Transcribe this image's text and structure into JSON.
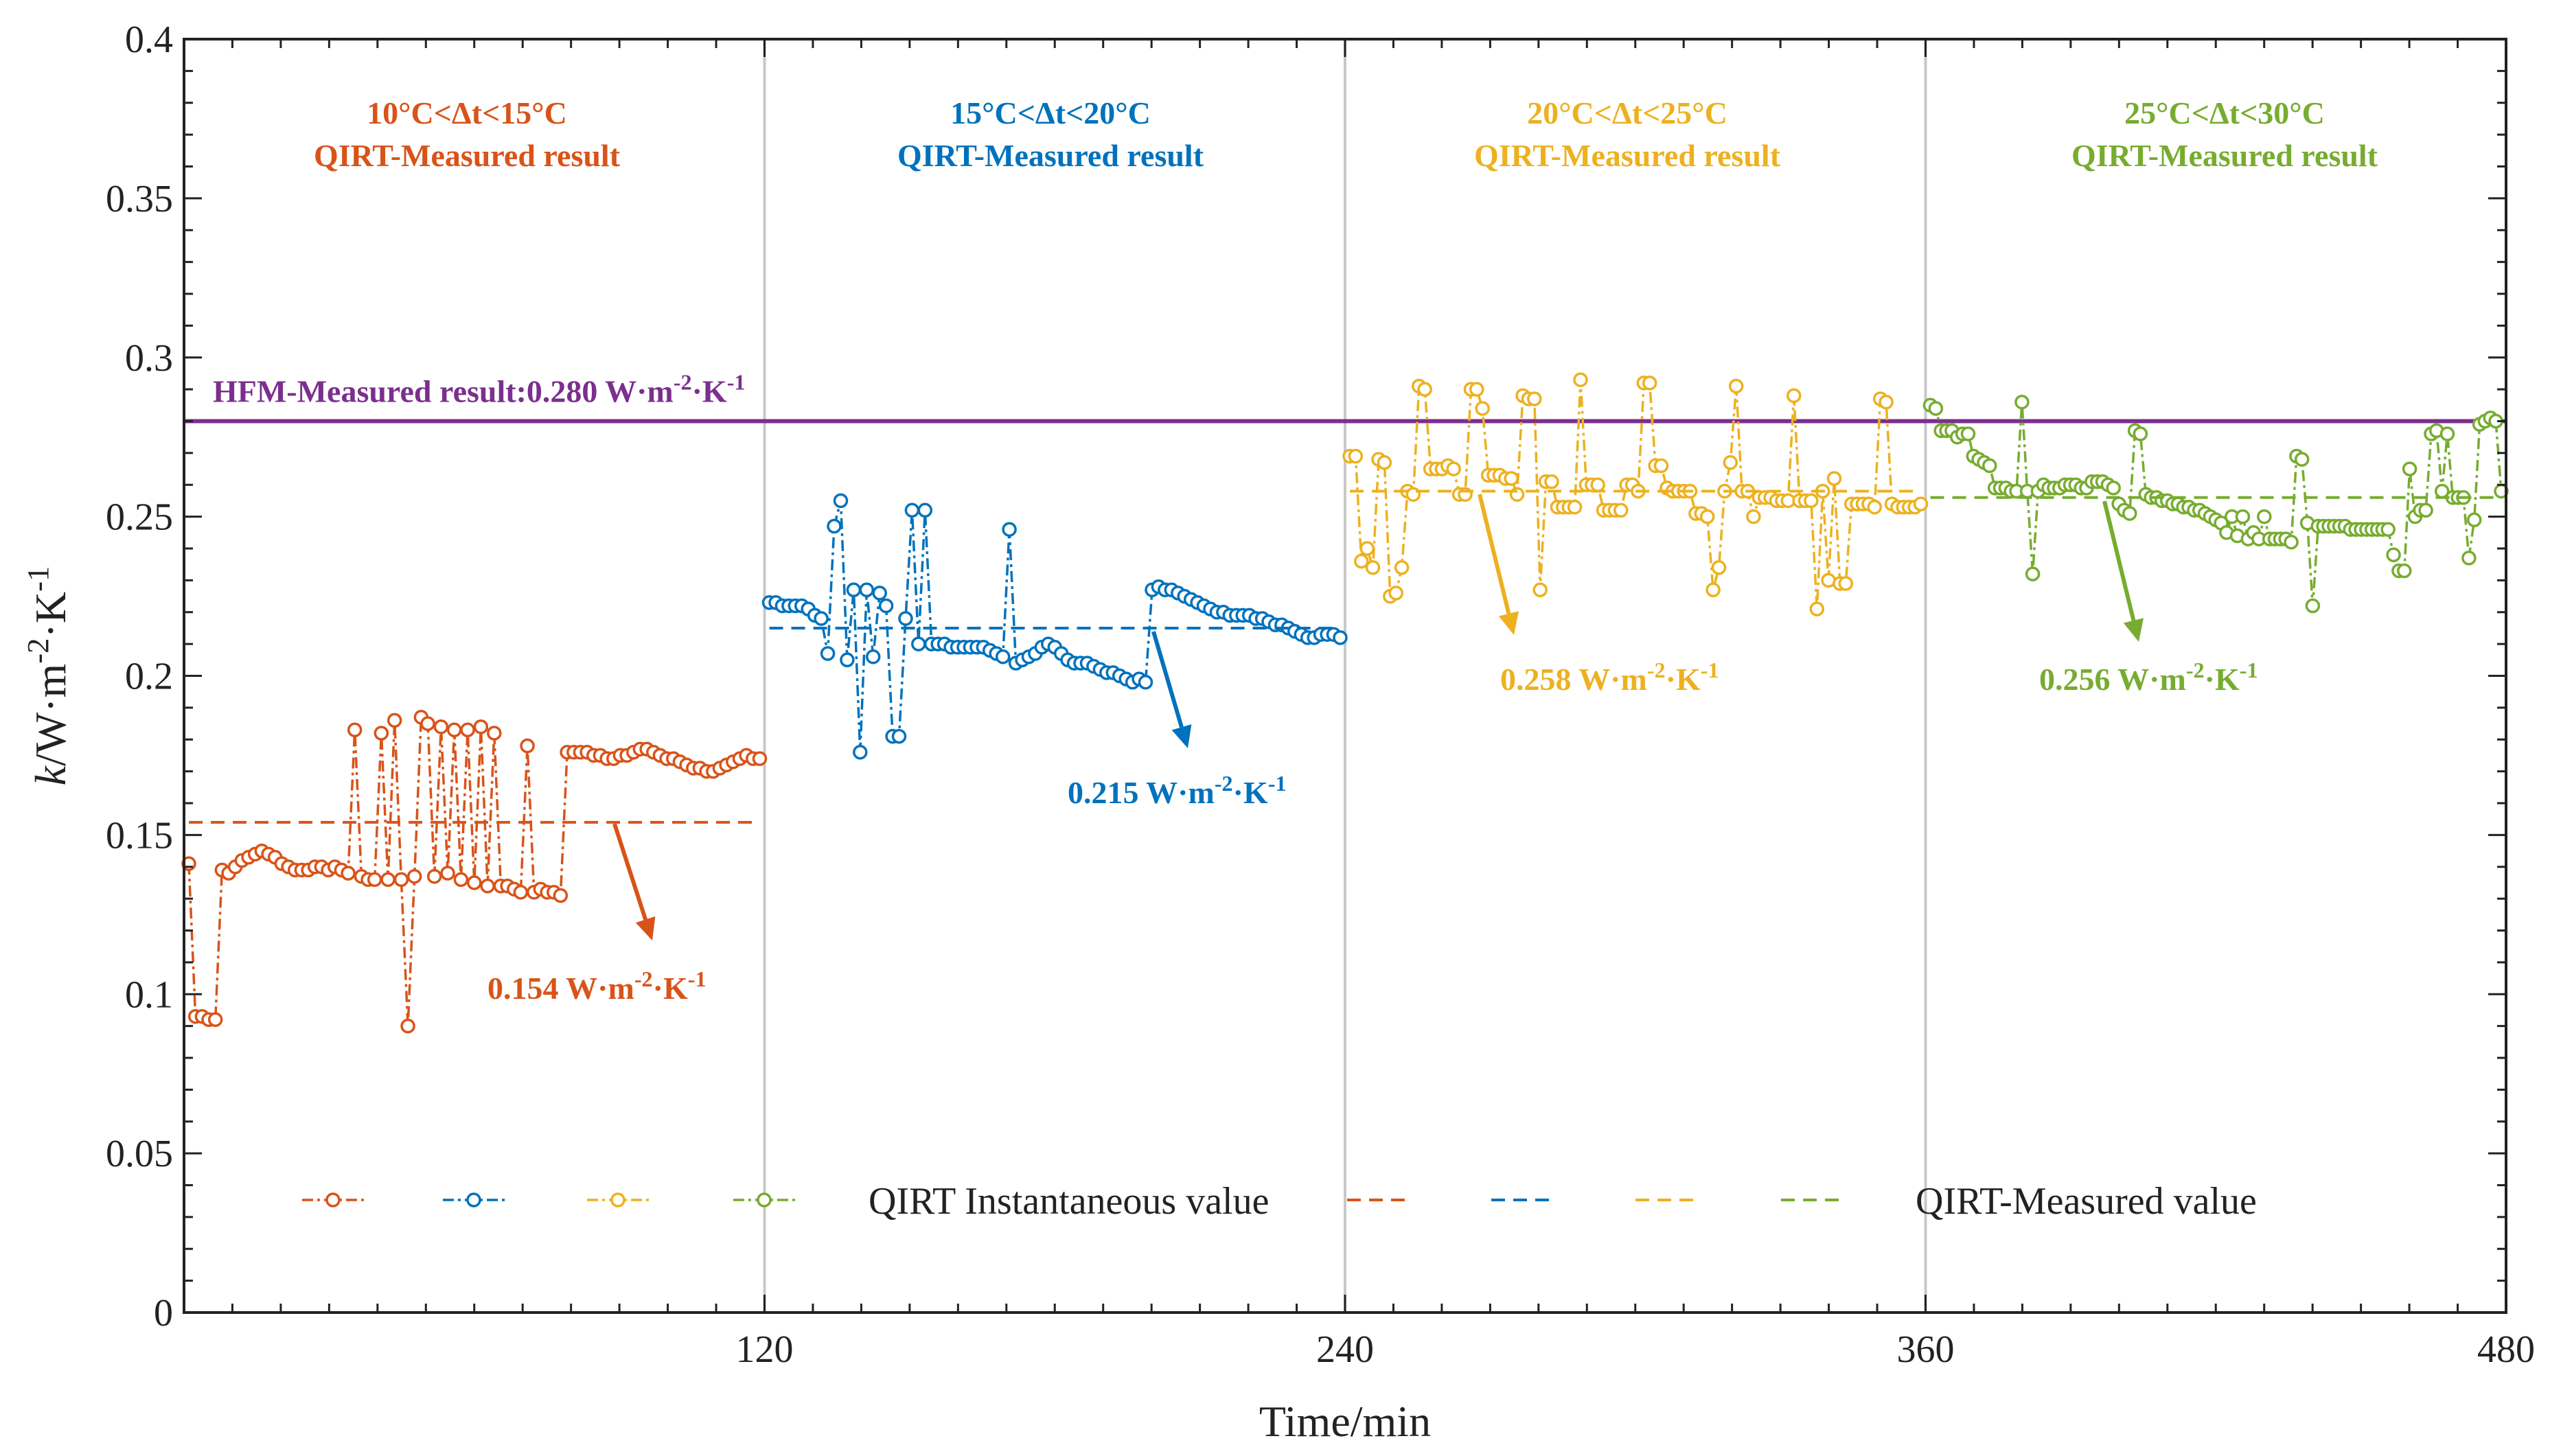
{
  "chart_data": {
    "type": "line",
    "xlabel": "Time/min",
    "ylabel_main": "k",
    "ylabel_rest": "/W·m",
    "ylabel_sup": "-2",
    "ylabel_mid": "·K",
    "ylabel_sup2": "-1",
    "xlim": [
      0,
      480
    ],
    "ylim": [
      0,
      0.4
    ],
    "x_ticks": [
      120,
      240,
      360,
      480
    ],
    "y_ticks": [
      0,
      0.05,
      0.1,
      0.15,
      0.2,
      0.25,
      0.3,
      0.35,
      0.4
    ],
    "y_tick_labels": [
      "0",
      "0.05",
      "0.1",
      "0.15",
      "0.2",
      "0.25",
      "0.3",
      "0.35",
      "0.4"
    ],
    "x_tick_labels": [
      "120",
      "240",
      "360",
      "480"
    ],
    "segment_dividers": [
      120,
      240,
      360
    ],
    "reference_line": {
      "label_main": "HFM-Measured result:0.280 W·m",
      "label_sup": "-2",
      "label_mid": "·K",
      "label_sup2": "-1",
      "value": 0.28,
      "color": "#7B2F8E"
    },
    "series": [
      {
        "name": "10°C<Δt<15°C",
        "title_line1": "10°C<Δt<15°C",
        "title_line2": "QIRT-Measured result",
        "color": "#D95319",
        "x_start": 1,
        "x_end": 119,
        "measured_value": 0.154,
        "measured_label_main": "0.154 W·m",
        "measured_label_sup": "-2",
        "measured_label_mid": "·K",
        "measured_label_sup2": "-1",
        "values": [
          0.141,
          0.093,
          0.093,
          0.092,
          0.092,
          0.139,
          0.138,
          0.14,
          0.142,
          0.143,
          0.144,
          0.145,
          0.144,
          0.143,
          0.141,
          0.14,
          0.139,
          0.139,
          0.139,
          0.14,
          0.14,
          0.139,
          0.14,
          0.139,
          0.138,
          0.183,
          0.137,
          0.136,
          0.136,
          0.182,
          0.136,
          0.186,
          0.136,
          0.09,
          0.137,
          0.187,
          0.185,
          0.137,
          0.184,
          0.138,
          0.183,
          0.136,
          0.183,
          0.135,
          0.184,
          0.134,
          0.182,
          0.134,
          0.134,
          0.133,
          0.132,
          0.178,
          0.132,
          0.133,
          0.132,
          0.132,
          0.131,
          0.176,
          0.176,
          0.176,
          0.176,
          0.175,
          0.175,
          0.174,
          0.174,
          0.175,
          0.175,
          0.176,
          0.177,
          0.177,
          0.176,
          0.175,
          0.174,
          0.174,
          0.173,
          0.172,
          0.171,
          0.171,
          0.17,
          0.17,
          0.171,
          0.172,
          0.173,
          0.174,
          0.175,
          0.174,
          0.174
        ]
      },
      {
        "name": "15°C<Δt<20°C",
        "title_line1": "15°C<Δt<20°C",
        "title_line2": "QIRT-Measured result",
        "color": "#0072BD",
        "x_start": 121,
        "x_end": 239,
        "measured_value": 0.215,
        "measured_label_main": "0.215 W·m",
        "measured_label_sup": "-2",
        "measured_label_mid": "·K",
        "measured_label_sup2": "-1",
        "values": [
          0.223,
          0.223,
          0.222,
          0.222,
          0.222,
          0.222,
          0.221,
          0.219,
          0.218,
          0.207,
          0.247,
          0.255,
          0.205,
          0.227,
          0.176,
          0.227,
          0.206,
          0.226,
          0.222,
          0.181,
          0.181,
          0.218,
          0.252,
          0.21,
          0.252,
          0.21,
          0.21,
          0.21,
          0.209,
          0.209,
          0.209,
          0.209,
          0.209,
          0.209,
          0.208,
          0.207,
          0.206,
          0.246,
          0.204,
          0.205,
          0.206,
          0.207,
          0.209,
          0.21,
          0.209,
          0.207,
          0.205,
          0.204,
          0.204,
          0.204,
          0.203,
          0.202,
          0.201,
          0.201,
          0.2,
          0.199,
          0.198,
          0.199,
          0.198,
          0.227,
          0.228,
          0.227,
          0.227,
          0.226,
          0.225,
          0.224,
          0.223,
          0.222,
          0.221,
          0.22,
          0.22,
          0.219,
          0.219,
          0.219,
          0.219,
          0.218,
          0.218,
          0.217,
          0.216,
          0.216,
          0.215,
          0.214,
          0.213,
          0.212,
          0.212,
          0.213,
          0.213,
          0.213,
          0.212
        ]
      },
      {
        "name": "20°C<Δt<25°C",
        "title_line1": "20°C<Δt<25°C",
        "title_line2": "QIRT-Measured result",
        "color": "#EDB120",
        "x_start": 241,
        "x_end": 359,
        "measured_value": 0.258,
        "measured_label_main": "0.258 W·m",
        "measured_label_sup": "-2",
        "measured_label_mid": "·K",
        "measured_label_sup2": "-1",
        "values": [
          0.269,
          0.269,
          0.236,
          0.24,
          0.234,
          0.268,
          0.267,
          0.225,
          0.226,
          0.234,
          0.258,
          0.257,
          0.291,
          0.29,
          0.265,
          0.265,
          0.265,
          0.266,
          0.265,
          0.257,
          0.257,
          0.29,
          0.29,
          0.284,
          0.263,
          0.263,
          0.263,
          0.262,
          0.262,
          0.257,
          0.288,
          0.287,
          0.287,
          0.227,
          0.261,
          0.261,
          0.253,
          0.253,
          0.253,
          0.253,
          0.293,
          0.26,
          0.26,
          0.26,
          0.252,
          0.252,
          0.252,
          0.252,
          0.26,
          0.26,
          0.258,
          0.292,
          0.292,
          0.266,
          0.266,
          0.259,
          0.258,
          0.258,
          0.258,
          0.258,
          0.251,
          0.251,
          0.25,
          0.227,
          0.234,
          0.258,
          0.267,
          0.291,
          0.258,
          0.258,
          0.25,
          0.256,
          0.256,
          0.256,
          0.255,
          0.255,
          0.255,
          0.288,
          0.255,
          0.255,
          0.255,
          0.221,
          0.258,
          0.23,
          0.262,
          0.229,
          0.229,
          0.254,
          0.254,
          0.254,
          0.254,
          0.253,
          0.287,
          0.286,
          0.254,
          0.253,
          0.253,
          0.253,
          0.253,
          0.254
        ]
      },
      {
        "name": "25°C<Δt<30°C",
        "title_line1": "25°C<Δt<30°C",
        "title_line2": "QIRT-Measured result",
        "color": "#77AC30",
        "x_start": 361,
        "x_end": 479,
        "measured_value": 0.256,
        "measured_label_main": "0.256 W·m",
        "measured_label_sup": "-2",
        "measured_label_mid": "·K",
        "measured_label_sup2": "-1",
        "values": [
          0.285,
          0.284,
          0.277,
          0.277,
          0.277,
          0.275,
          0.276,
          0.276,
          0.269,
          0.268,
          0.267,
          0.266,
          0.259,
          0.259,
          0.259,
          0.258,
          0.258,
          0.286,
          0.258,
          0.232,
          0.258,
          0.26,
          0.259,
          0.259,
          0.259,
          0.26,
          0.26,
          0.26,
          0.259,
          0.259,
          0.261,
          0.261,
          0.261,
          0.26,
          0.259,
          0.254,
          0.252,
          0.251,
          0.277,
          0.276,
          0.257,
          0.256,
          0.256,
          0.255,
          0.255,
          0.254,
          0.254,
          0.253,
          0.253,
          0.252,
          0.252,
          0.251,
          0.25,
          0.249,
          0.248,
          0.245,
          0.25,
          0.244,
          0.25,
          0.243,
          0.245,
          0.243,
          0.25,
          0.243,
          0.243,
          0.243,
          0.243,
          0.242,
          0.269,
          0.268,
          0.248,
          0.222,
          0.247,
          0.247,
          0.247,
          0.247,
          0.247,
          0.247,
          0.246,
          0.246,
          0.246,
          0.246,
          0.246,
          0.246,
          0.246,
          0.246,
          0.238,
          0.233,
          0.233,
          0.265,
          0.25,
          0.252,
          0.252,
          0.276,
          0.277,
          0.258,
          0.276,
          0.256,
          0.256,
          0.256,
          0.237,
          0.249,
          0.279,
          0.28,
          0.281,
          0.28,
          0.258
        ]
      }
    ],
    "legend": {
      "instantaneous_label": "QIRT Instantaneous value",
      "measured_label": "QIRT-Measured value"
    }
  }
}
